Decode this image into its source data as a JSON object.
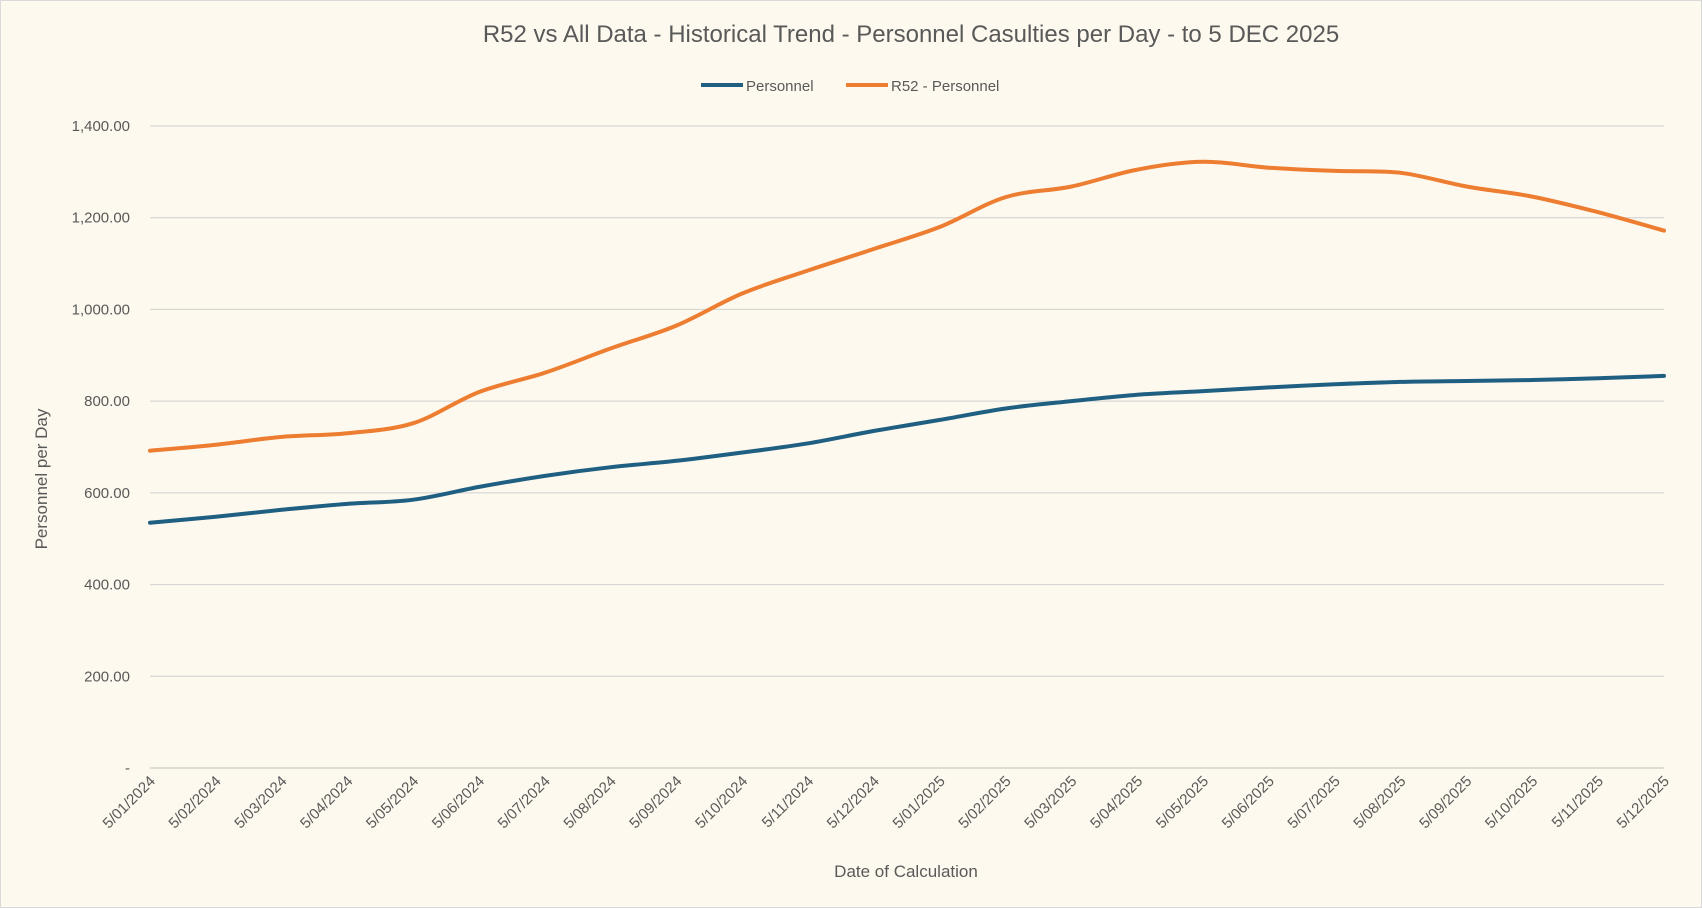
{
  "chart_data": {
    "type": "line",
    "title": "R52 vs All Data - Historical Trend - Personnel Casulties per Day - to 5 DEC 2025",
    "xlabel": "Date of Calculation",
    "ylabel": "Personnel per Day",
    "ylim": [
      0,
      1400
    ],
    "yticks": [
      {
        "value": 0,
        "label": "-"
      },
      {
        "value": 200,
        "label": "200.00"
      },
      {
        "value": 400,
        "label": "400.00"
      },
      {
        "value": 600,
        "label": "600.00"
      },
      {
        "value": 800,
        "label": "800.00"
      },
      {
        "value": 1000,
        "label": "1,000.00"
      },
      {
        "value": 1200,
        "label": "1,200.00"
      },
      {
        "value": 1400,
        "label": "1,400.00"
      }
    ],
    "categories": [
      "5/01/2024",
      "5/02/2024",
      "5/03/2024",
      "5/04/2024",
      "5/05/2024",
      "5/06/2024",
      "5/07/2024",
      "5/08/2024",
      "5/09/2024",
      "5/10/2024",
      "5/11/2024",
      "5/12/2024",
      "5/01/2025",
      "5/02/2025",
      "5/03/2025",
      "5/04/2025",
      "5/05/2025",
      "5/06/2025",
      "5/07/2025",
      "5/08/2025",
      "5/09/2025",
      "5/10/2025",
      "5/11/2025",
      "5/12/2025"
    ],
    "grid": true,
    "legend_position": "top-center",
    "series": [
      {
        "name": "Personnel",
        "color": "#1f5f82",
        "values": [
          535,
          548,
          563,
          576,
          585,
          613,
          637,
          656,
          670,
          688,
          708,
          735,
          759,
          784,
          800,
          814,
          822,
          830,
          837,
          842,
          844,
          846,
          850,
          855
        ]
      },
      {
        "name": "R52 - Personnel",
        "color": "#ed7d31",
        "values": [
          692,
          705,
          722,
          730,
          752,
          820,
          862,
          915,
          965,
          1035,
          1085,
          1132,
          1180,
          1245,
          1268,
          1305,
          1322,
          1309,
          1302,
          1298,
          1268,
          1246,
          1212,
          1172
        ]
      }
    ]
  }
}
